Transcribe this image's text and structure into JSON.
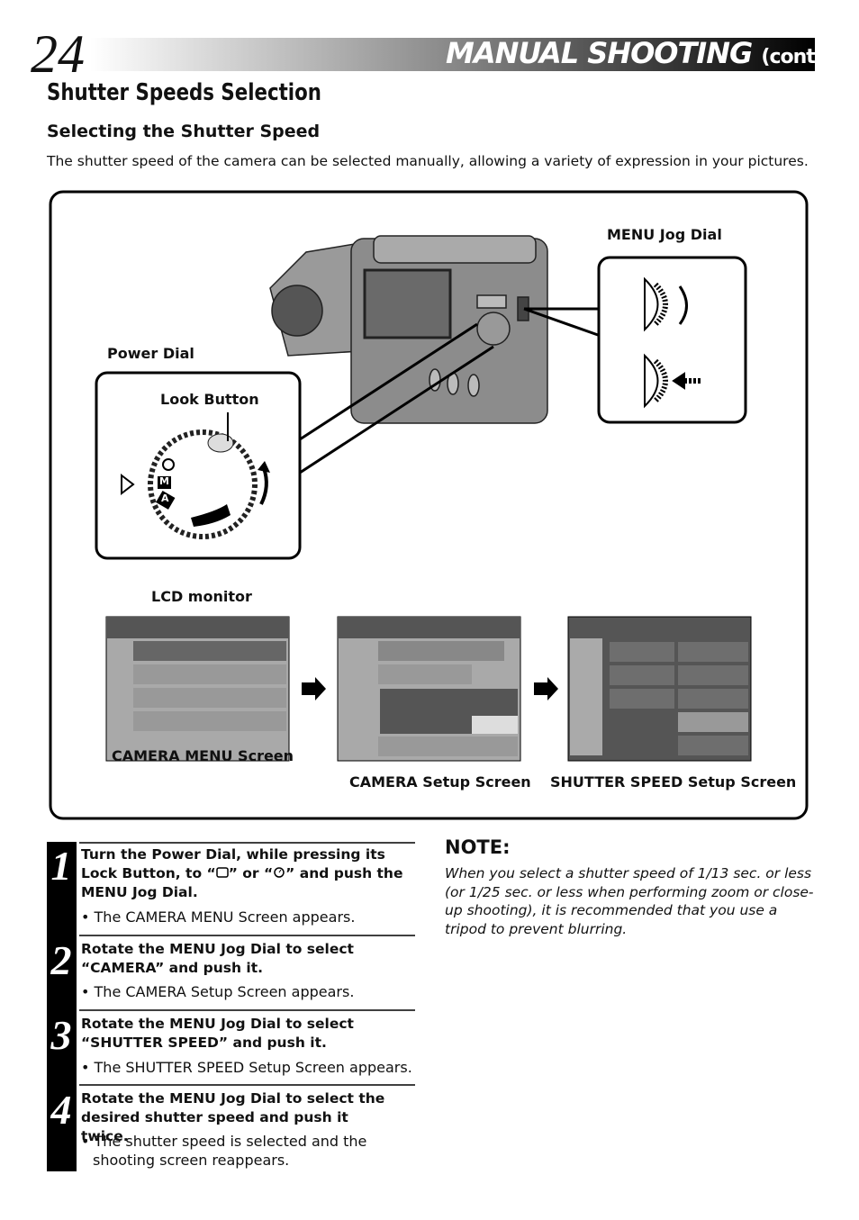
{
  "header": {
    "page_number": "24",
    "title": "MANUAL SHOOTING",
    "title_suffix": "(cont.)"
  },
  "section": {
    "title": "Shutter Speeds Selection",
    "subtitle": "Selecting the Shutter Speed",
    "intro": "The shutter speed of the camera can be selected manually, allowing a variety of expression in your pictures."
  },
  "diagram": {
    "menu_jog_dial": "MENU Jog Dial",
    "power_dial": "Power Dial",
    "look_button": "Look Button",
    "dial_marks": [
      "M",
      "A"
    ],
    "lcd_monitor": "LCD monitor",
    "screens": [
      "CAMERA MENU Screen",
      "CAMERA Setup Screen",
      "SHUTTER SPEED Setup Screen"
    ]
  },
  "steps": [
    {
      "number": "1",
      "instruction_parts": [
        "Turn the Power Dial, while pressing its Lock Button, to “",
        "” or “",
        "” and push the MENU Jog Dial."
      ],
      "result": "• The CAMERA MENU Screen appears."
    },
    {
      "number": "2",
      "instruction": "Rotate the MENU Jog Dial to select “CAMERA” and push it.",
      "result": "• The CAMERA Setup Screen appears."
    },
    {
      "number": "3",
      "instruction": "Rotate the MENU Jog Dial to select “SHUTTER SPEED” and push it.",
      "result": "• The SHUTTER SPEED Setup Screen appears."
    },
    {
      "number": "4",
      "instruction": "Rotate the MENU Jog Dial to select the desired shutter speed and push it twice.",
      "result": "• The shutter speed is selected and the shooting screen reappears."
    }
  ],
  "note": {
    "title": "NOTE:",
    "text": "When you select a shutter speed of 1/13 sec. or less (or 1/25 sec. or less when performing zoom or close-up shooting), it is recommended that you use a tripod to prevent blurring."
  }
}
